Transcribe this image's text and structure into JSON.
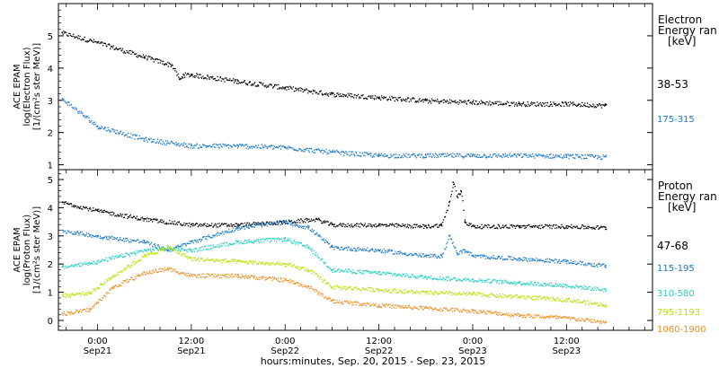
{
  "chart_data": [
    {
      "type": "scatter",
      "panel": "electron",
      "ylabel_lines": [
        "ACE EPAM",
        "log(Electron Flux)",
        "[1/(cm²s ster MeV)]"
      ],
      "ylim": [
        0.85,
        6.0
      ],
      "yticks": [
        1,
        2,
        3,
        4,
        5
      ],
      "legend_title": [
        "Electron",
        "Energy ran",
        "[keV]"
      ],
      "series": [
        {
          "name": "38-53",
          "color": "#000000",
          "x": [
            -4.5,
            0,
            6,
            9.5,
            10.5,
            11,
            12,
            18,
            24,
            30,
            36,
            42,
            48,
            54,
            60,
            65
          ],
          "y": [
            5.1,
            4.8,
            4.35,
            4.1,
            3.65,
            3.8,
            3.8,
            3.6,
            3.4,
            3.2,
            3.1,
            3.0,
            2.95,
            2.9,
            2.9,
            2.85
          ]
        },
        {
          "name": "175-315",
          "color": "#1a77c9",
          "x": [
            -4.5,
            0,
            6,
            12,
            18,
            24,
            30,
            36,
            42,
            48,
            54,
            60,
            65
          ],
          "y": [
            3.05,
            2.2,
            1.8,
            1.6,
            1.6,
            1.55,
            1.4,
            1.3,
            1.3,
            1.3,
            1.3,
            1.28,
            1.25
          ]
        }
      ]
    },
    {
      "type": "scatter",
      "panel": "proton",
      "ylabel_lines": [
        "ACE EPAM",
        "log(Proton Flux)",
        "[1/(cm²s ster MeV)]"
      ],
      "ylim": [
        -0.35,
        5.35
      ],
      "yticks": [
        0,
        1,
        2,
        3,
        4,
        5
      ],
      "legend_title": [
        "Proton",
        "Energy ran",
        "[keV]"
      ],
      "series": [
        {
          "name": "47-68",
          "color": "#000000",
          "x": [
            -4.5,
            0,
            6,
            12,
            18,
            24,
            28,
            30,
            36,
            42,
            44,
            45,
            45.5,
            46,
            46.5,
            47,
            48,
            54,
            60,
            65
          ],
          "y": [
            4.2,
            3.9,
            3.6,
            3.4,
            3.4,
            3.5,
            3.6,
            3.4,
            3.4,
            3.35,
            3.4,
            4.2,
            4.9,
            4.4,
            4.6,
            3.5,
            3.35,
            3.35,
            3.35,
            3.3
          ]
        },
        {
          "name": "115-195",
          "color": "#1a77c9",
          "x": [
            -4.5,
            0,
            6,
            9,
            12,
            18,
            24,
            27,
            30,
            36,
            42,
            44,
            45,
            46,
            47,
            48,
            54,
            60,
            65
          ],
          "y": [
            3.2,
            3.0,
            2.8,
            2.5,
            2.8,
            3.3,
            3.5,
            3.3,
            2.6,
            2.5,
            2.3,
            2.3,
            3.0,
            2.4,
            2.5,
            2.3,
            2.2,
            2.1,
            1.95
          ]
        },
        {
          "name": "310-580",
          "color": "#20d0c0",
          "x": [
            -4.5,
            0,
            6,
            9,
            12,
            18,
            24,
            27,
            30,
            36,
            42,
            48,
            54,
            60,
            65
          ],
          "y": [
            1.9,
            2.1,
            2.5,
            2.6,
            2.5,
            2.8,
            2.9,
            2.6,
            1.8,
            1.7,
            1.55,
            1.45,
            1.35,
            1.25,
            1.1
          ]
        },
        {
          "name": "795-1193",
          "color": "#b8e000",
          "x": [
            -4.5,
            -1,
            2,
            6,
            9,
            12,
            18,
            24,
            27,
            30,
            36,
            42,
            48,
            54,
            60,
            65
          ],
          "y": [
            0.9,
            1.0,
            1.6,
            2.3,
            2.6,
            2.2,
            2.1,
            2.0,
            1.8,
            1.2,
            1.1,
            1.0,
            0.95,
            0.85,
            0.75,
            0.55
          ]
        },
        {
          "name": "1060-1900",
          "color": "#f08c1e",
          "x": [
            -4.5,
            -1,
            2,
            6,
            9,
            12,
            18,
            24,
            27,
            30,
            36,
            42,
            48,
            54,
            60,
            65
          ],
          "y": [
            0.25,
            0.4,
            1.2,
            1.7,
            1.85,
            1.6,
            1.6,
            1.45,
            1.2,
            0.7,
            0.55,
            0.45,
            0.35,
            0.2,
            0.1,
            -0.05
          ]
        }
      ]
    }
  ],
  "x_axis": {
    "xlim": [
      -5,
      71
    ],
    "ticks": [
      {
        "x": 0,
        "time": "0:00",
        "day": "Sep21"
      },
      {
        "x": 12,
        "time": "12:00",
        "day": "Sep21"
      },
      {
        "x": 24,
        "time": "0:00",
        "day": "Sep22"
      },
      {
        "x": 36,
        "time": "12:00",
        "day": "Sep22"
      },
      {
        "x": 48,
        "time": "0:00",
        "day": "Sep23"
      },
      {
        "x": 60,
        "time": "12:00",
        "day": "Sep23"
      }
    ],
    "label": "hours:minutes, Sep. 20, 2015 - Sep. 23, 2015"
  }
}
